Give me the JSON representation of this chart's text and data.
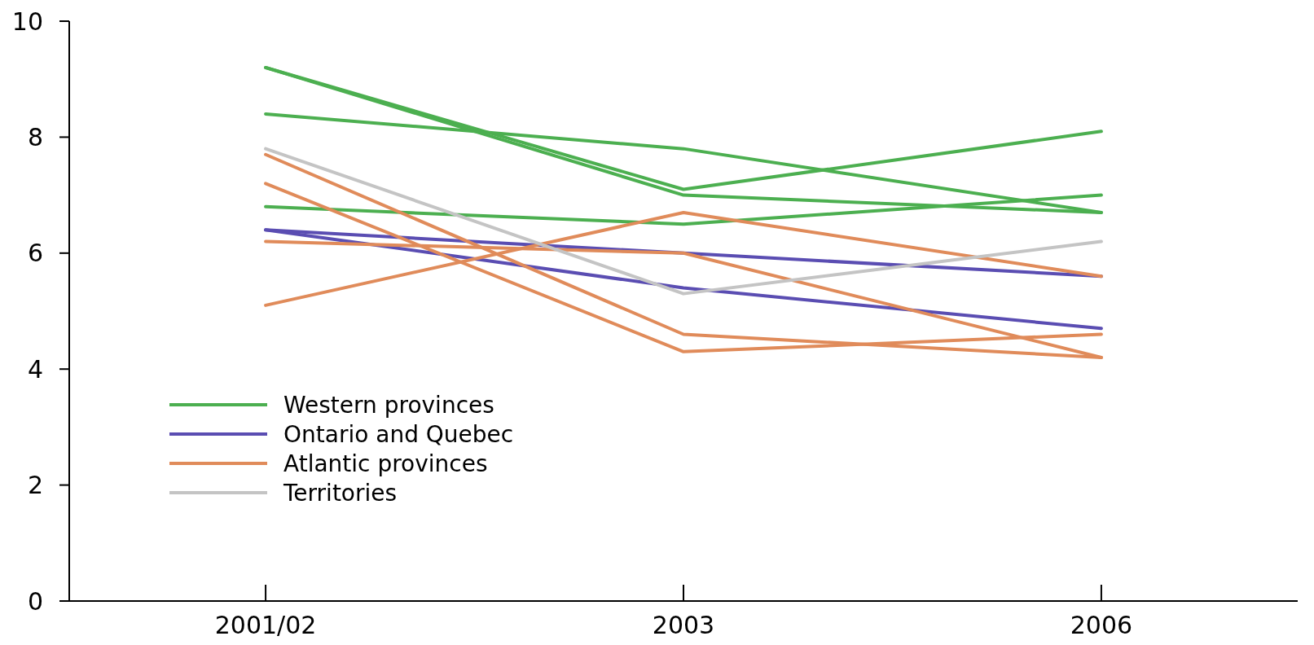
{
  "chart_data": {
    "type": "line",
    "categories": [
      "2001/02",
      "2003",
      "2006"
    ],
    "ylim": [
      0,
      10
    ],
    "yticks": [
      0,
      2,
      4,
      6,
      8,
      10
    ],
    "grid": false,
    "legend": "bottom left",
    "marker": "none",
    "line_style": "solid",
    "series": [
      {
        "name": "Western provinces",
        "color": "#4caf50",
        "values": [
          9.2,
          7.1,
          8.1
        ]
      },
      {
        "color": "#4caf50",
        "values": [
          9.2,
          7.0,
          6.7
        ]
      },
      {
        "color": "#4caf50",
        "values": [
          8.4,
          7.8,
          6.7
        ]
      },
      {
        "color": "#4caf50",
        "values": [
          6.8,
          6.5,
          7.0
        ]
      },
      {
        "name": "Ontario and Quebec",
        "color": "#5a4db2",
        "values": [
          6.4,
          6.0,
          5.6
        ]
      },
      {
        "color": "#5a4db2",
        "values": [
          6.4,
          5.4,
          4.7
        ]
      },
      {
        "name": "Atlantic provinces",
        "color": "#e08b5a",
        "values": [
          5.1,
          6.7,
          5.6
        ]
      },
      {
        "color": "#e08b5a",
        "values": [
          6.2,
          6.0,
          4.2
        ]
      },
      {
        "color": "#e08b5a",
        "values": [
          7.7,
          4.6,
          4.2
        ]
      },
      {
        "color": "#e08b5a",
        "values": [
          7.2,
          4.3,
          4.6
        ]
      },
      {
        "name": "Territories",
        "color": "#c4c4c4",
        "values": [
          7.8,
          5.3,
          6.2
        ]
      }
    ]
  }
}
